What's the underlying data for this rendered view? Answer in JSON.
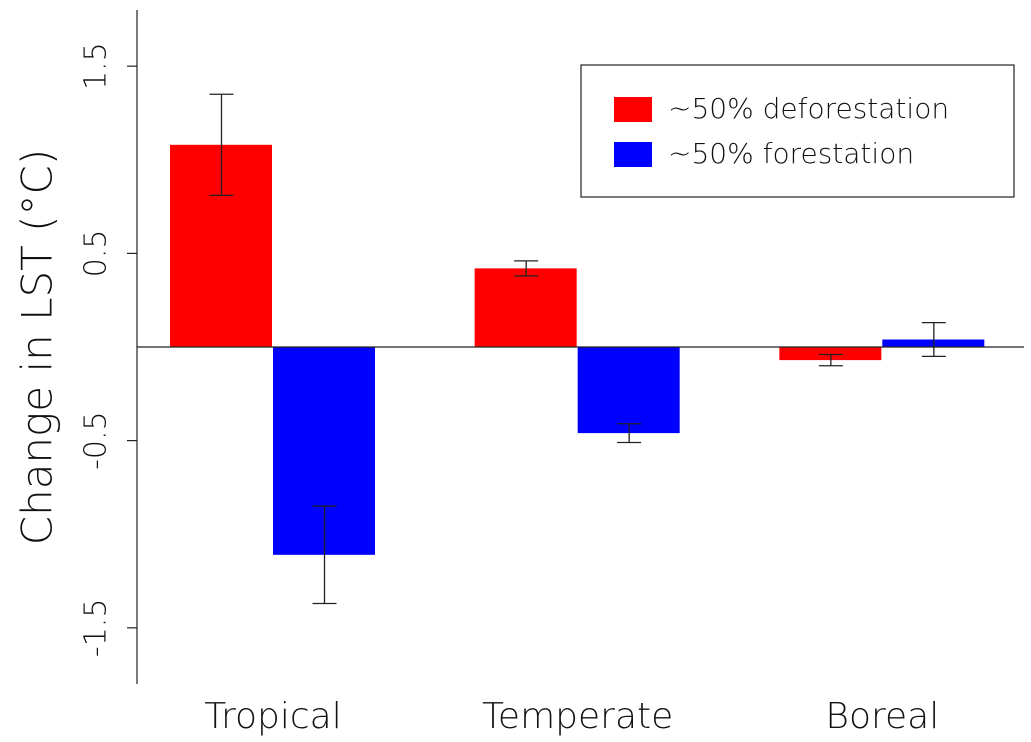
{
  "chart_data": {
    "type": "bar",
    "y_label": "Change in LST (°C)",
    "categories": [
      "Tropical",
      "Temperate",
      "Boreal"
    ],
    "series": [
      {
        "name": "~50% deforestation",
        "color": "#ff0000",
        "values": [
          1.08,
          0.42,
          -0.07
        ],
        "errors": [
          0.27,
          0.04,
          0.03
        ]
      },
      {
        "name": "~50% forestation",
        "color": "#0000ff",
        "values": [
          -1.11,
          -0.46,
          0.04
        ],
        "errors": [
          0.26,
          0.05,
          0.09
        ]
      }
    ],
    "ylim": [
      -1.8,
      1.8
    ],
    "yticks": [
      1.5,
      0.5,
      -0.5,
      -1.5
    ],
    "legend": "upper right",
    "zero_line": true
  }
}
